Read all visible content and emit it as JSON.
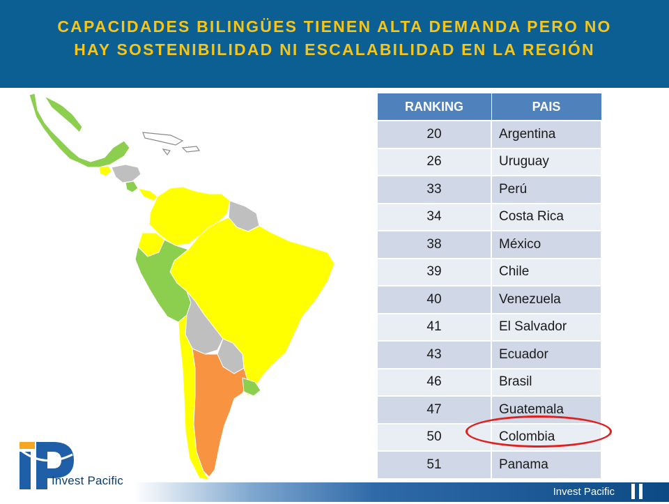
{
  "slide": {
    "title_line1": "CAPACIDADES BILINGÜES TIENEN ALTA DEMANDA PERO NO",
    "title_line2": "HAY SOSTENIBILIDAD NI ESCALABILIDAD EN LA REGIÓN"
  },
  "colors": {
    "header_bg": "#0c5f92",
    "title_text": "#f5c518",
    "table_header": "#4f81bd",
    "row_odd": "#d0d8e8",
    "row_even": "#e9edf4",
    "highlight_circle": "#e0201f",
    "map_green": "#8ccf4f",
    "map_yellow": "#ffff00",
    "map_orange": "#f79341",
    "map_gray": "#bfbfbf"
  },
  "table": {
    "headers": [
      "RANKING",
      "PAIS"
    ],
    "rows": [
      {
        "rank": "20",
        "country": "Argentina"
      },
      {
        "rank": "26",
        "country": "Uruguay"
      },
      {
        "rank": "33",
        "country": "Perú"
      },
      {
        "rank": "34",
        "country": "Costa Rica"
      },
      {
        "rank": "38",
        "country": "México"
      },
      {
        "rank": "39",
        "country": "Chile"
      },
      {
        "rank": "40",
        "country": "Venezuela"
      },
      {
        "rank": "41",
        "country": "El Salvador"
      },
      {
        "rank": "43",
        "country": "Ecuador"
      },
      {
        "rank": "46",
        "country": "Brasil"
      },
      {
        "rank": "47",
        "country": "Guatemala"
      },
      {
        "rank": "50",
        "country": "Colombia",
        "highlighted": true
      },
      {
        "rank": "51",
        "country": "Panama"
      }
    ]
  },
  "branding": {
    "logo_text": "Invest Pacific",
    "footer_text": "Invest Pacific"
  }
}
